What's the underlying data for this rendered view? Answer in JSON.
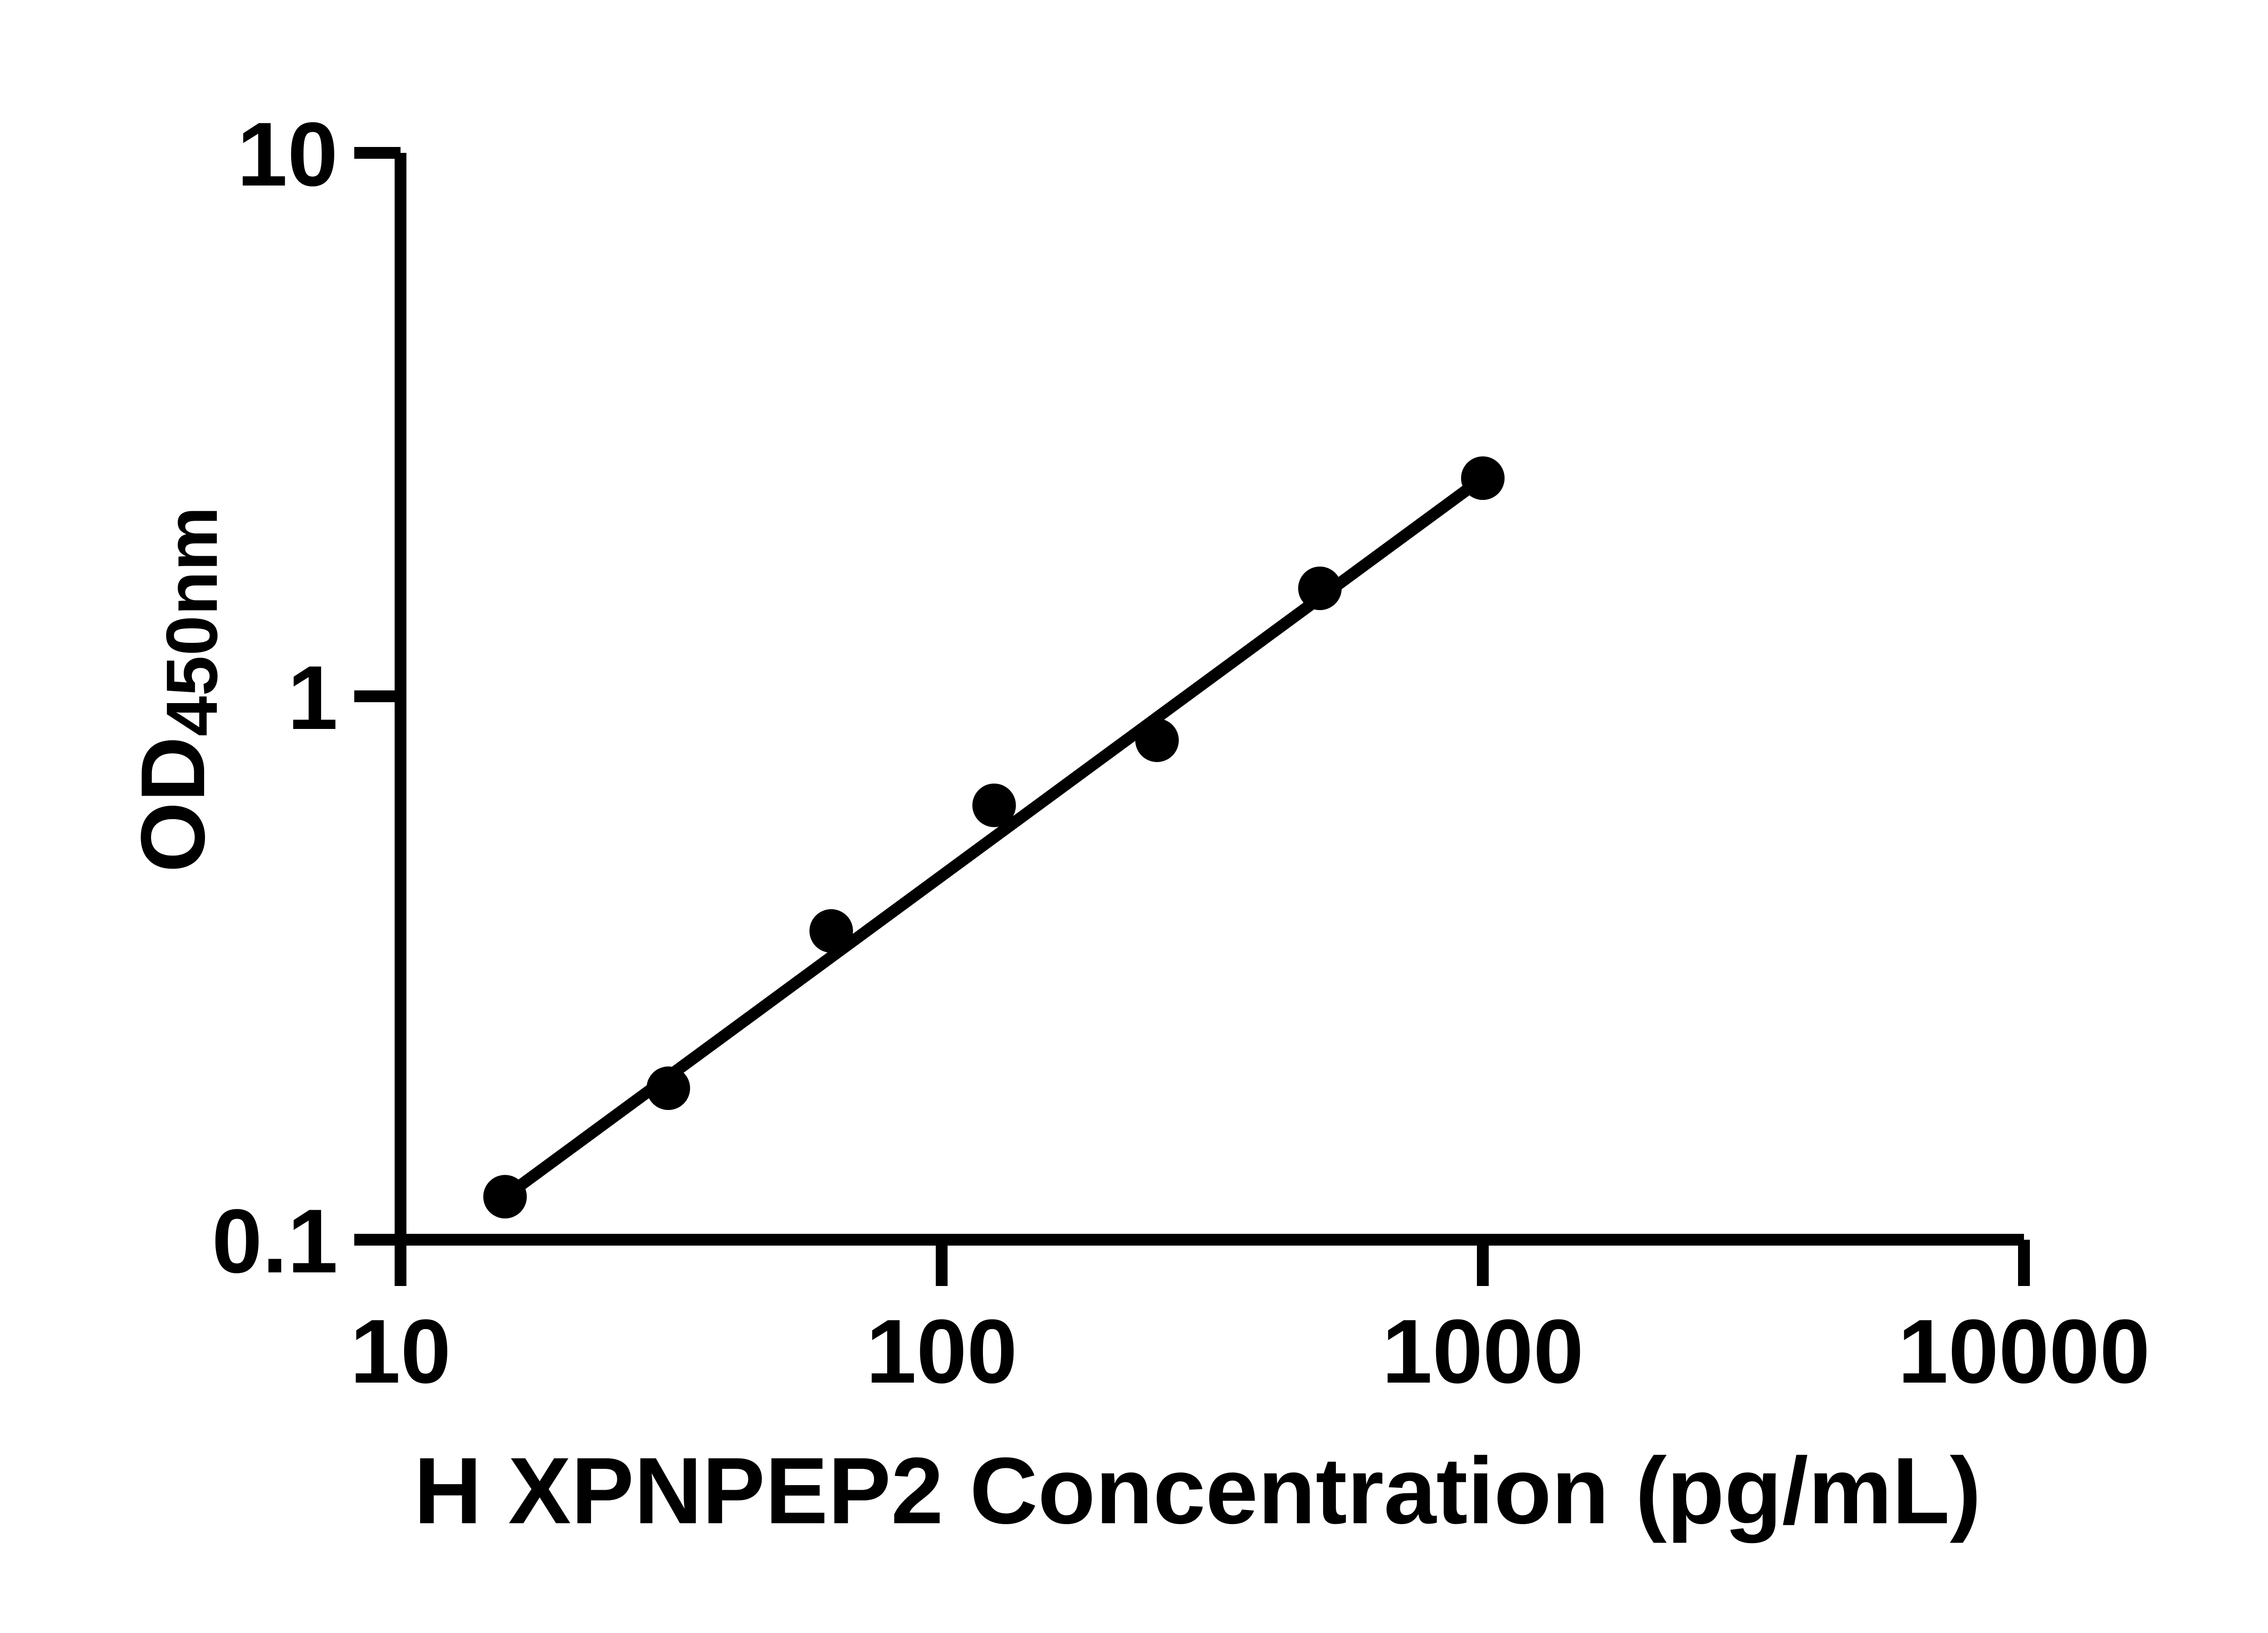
{
  "page": {
    "background_color": "#ffffff",
    "foreground_color": "#000000"
  },
  "chart_data": {
    "type": "scatter",
    "title": "",
    "xlabel": "H XPNPEP2 Concentration (pg/mL)",
    "ylabel_main": "OD",
    "ylabel_subscript": "450nm",
    "x_scale": "log",
    "y_scale": "log",
    "xlim": [
      10,
      10000
    ],
    "ylim": [
      0.1,
      10
    ],
    "grid": false,
    "legend": false,
    "x_ticks": [
      {
        "value": 10,
        "label": "10"
      },
      {
        "value": 100,
        "label": "100"
      },
      {
        "value": 1000,
        "label": "1000"
      },
      {
        "value": 10000,
        "label": "10000"
      }
    ],
    "y_ticks": [
      {
        "value": 0.1,
        "label": "0.1"
      },
      {
        "value": 1,
        "label": "1"
      },
      {
        "value": 10,
        "label": "10"
      }
    ],
    "series": [
      {
        "name": "standard-curve",
        "marker": "filled-circle",
        "color": "#000000",
        "points": [
          {
            "x": 15.6,
            "od": 0.12
          },
          {
            "x": 31.25,
            "od": 0.19
          },
          {
            "x": 62.5,
            "od": 0.37
          },
          {
            "x": 125,
            "od": 0.63
          },
          {
            "x": 250,
            "od": 0.83
          },
          {
            "x": 500,
            "od": 1.58
          },
          {
            "x": 1000,
            "od": 2.52
          }
        ]
      }
    ],
    "trend_line": {
      "style": "straight",
      "color": "#000000",
      "from_point_index": 0,
      "to_point_index": 6
    }
  }
}
